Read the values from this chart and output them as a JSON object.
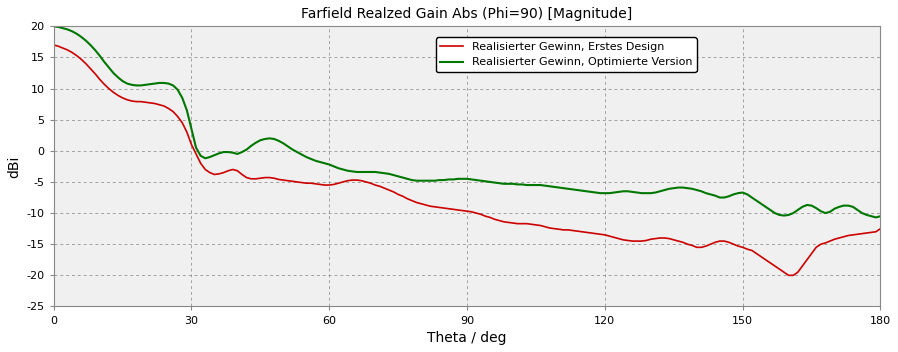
{
  "title": "Farfield Realzed Gain Abs (Phi=90) [Magnitude]",
  "xlabel": "Theta / deg",
  "ylabel": "dBi",
  "xlim": [
    0,
    180
  ],
  "ylim": [
    -25,
    20
  ],
  "xticks": [
    0,
    30,
    60,
    90,
    120,
    150,
    180
  ],
  "yticks": [
    -25,
    -20,
    -15,
    -10,
    -5,
    0,
    5,
    10,
    15,
    20
  ],
  "legend": [
    {
      "label": "Realisierter Gewinn, Erstes Design",
      "color": "#cc0000"
    },
    {
      "label": "Realisierter Gewinn, Optimierte Version",
      "color": "#007700"
    }
  ],
  "background_color": "#ffffff",
  "plot_bg_color": "#f0f0f0",
  "grid_color": "#808080",
  "red_x": [
    0,
    1,
    2,
    3,
    4,
    5,
    6,
    7,
    8,
    9,
    10,
    11,
    12,
    13,
    14,
    15,
    16,
    17,
    18,
    19,
    20,
    21,
    22,
    23,
    24,
    25,
    26,
    27,
    28,
    29,
    30,
    31,
    32,
    33,
    34,
    35,
    36,
    37,
    38,
    39,
    40,
    41,
    42,
    43,
    44,
    45,
    46,
    47,
    48,
    49,
    50,
    51,
    52,
    53,
    54,
    55,
    56,
    57,
    58,
    59,
    60,
    61,
    62,
    63,
    64,
    65,
    66,
    67,
    68,
    69,
    70,
    71,
    72,
    73,
    74,
    75,
    76,
    77,
    78,
    79,
    80,
    81,
    82,
    83,
    84,
    85,
    86,
    87,
    88,
    89,
    90,
    91,
    92,
    93,
    94,
    95,
    96,
    97,
    98,
    99,
    100,
    101,
    102,
    103,
    104,
    105,
    106,
    107,
    108,
    109,
    110,
    111,
    112,
    113,
    114,
    115,
    116,
    117,
    118,
    119,
    120,
    121,
    122,
    123,
    124,
    125,
    126,
    127,
    128,
    129,
    130,
    131,
    132,
    133,
    134,
    135,
    136,
    137,
    138,
    139,
    140,
    141,
    142,
    143,
    144,
    145,
    146,
    147,
    148,
    149,
    150,
    151,
    152,
    153,
    154,
    155,
    156,
    157,
    158,
    159,
    160,
    161,
    162,
    163,
    164,
    165,
    166,
    167,
    168,
    169,
    170,
    171,
    172,
    173,
    174,
    175,
    176,
    177,
    178,
    179,
    180
  ],
  "red_y": [
    17.0,
    16.8,
    16.5,
    16.2,
    15.8,
    15.3,
    14.7,
    14.0,
    13.2,
    12.4,
    11.5,
    10.7,
    10.0,
    9.4,
    8.9,
    8.5,
    8.2,
    8.0,
    7.9,
    7.9,
    7.8,
    7.7,
    7.6,
    7.4,
    7.2,
    6.8,
    6.3,
    5.5,
    4.5,
    3.0,
    1.0,
    -0.5,
    -2.0,
    -3.0,
    -3.5,
    -3.8,
    -3.7,
    -3.5,
    -3.2,
    -3.0,
    -3.2,
    -3.8,
    -4.3,
    -4.5,
    -4.5,
    -4.4,
    -4.3,
    -4.3,
    -4.4,
    -4.6,
    -4.7,
    -4.8,
    -4.9,
    -5.0,
    -5.1,
    -5.2,
    -5.2,
    -5.3,
    -5.4,
    -5.5,
    -5.5,
    -5.4,
    -5.2,
    -5.0,
    -4.8,
    -4.7,
    -4.7,
    -4.8,
    -5.0,
    -5.2,
    -5.5,
    -5.7,
    -6.0,
    -6.3,
    -6.6,
    -7.0,
    -7.3,
    -7.7,
    -8.0,
    -8.3,
    -8.5,
    -8.7,
    -8.9,
    -9.0,
    -9.1,
    -9.2,
    -9.3,
    -9.4,
    -9.5,
    -9.6,
    -9.7,
    -9.8,
    -10.0,
    -10.2,
    -10.5,
    -10.7,
    -11.0,
    -11.2,
    -11.4,
    -11.5,
    -11.6,
    -11.7,
    -11.7,
    -11.7,
    -11.8,
    -11.9,
    -12.0,
    -12.2,
    -12.4,
    -12.5,
    -12.6,
    -12.7,
    -12.7,
    -12.8,
    -12.9,
    -13.0,
    -13.1,
    -13.2,
    -13.3,
    -13.4,
    -13.5,
    -13.7,
    -13.9,
    -14.1,
    -14.3,
    -14.4,
    -14.5,
    -14.5,
    -14.5,
    -14.4,
    -14.2,
    -14.1,
    -14.0,
    -14.0,
    -14.1,
    -14.3,
    -14.5,
    -14.7,
    -15.0,
    -15.2,
    -15.5,
    -15.5,
    -15.3,
    -15.0,
    -14.7,
    -14.5,
    -14.5,
    -14.7,
    -15.0,
    -15.3,
    -15.5,
    -15.8,
    -16.0,
    -16.5,
    -17.0,
    -17.5,
    -18.0,
    -18.5,
    -19.0,
    -19.5,
    -20.0,
    -20.0,
    -19.5,
    -18.5,
    -17.5,
    -16.5,
    -15.5,
    -15.0,
    -14.8,
    -14.5,
    -14.2,
    -14.0,
    -13.8,
    -13.6,
    -13.5,
    -13.4,
    -13.3,
    -13.2,
    -13.1,
    -13.0,
    -12.5
  ],
  "green_x": [
    0,
    1,
    2,
    3,
    4,
    5,
    6,
    7,
    8,
    9,
    10,
    11,
    12,
    13,
    14,
    15,
    16,
    17,
    18,
    19,
    20,
    21,
    22,
    23,
    24,
    25,
    26,
    27,
    28,
    29,
    30,
    31,
    32,
    33,
    34,
    35,
    36,
    37,
    38,
    39,
    40,
    41,
    42,
    43,
    44,
    45,
    46,
    47,
    48,
    49,
    50,
    51,
    52,
    53,
    54,
    55,
    56,
    57,
    58,
    59,
    60,
    61,
    62,
    63,
    64,
    65,
    66,
    67,
    68,
    69,
    70,
    71,
    72,
    73,
    74,
    75,
    76,
    77,
    78,
    79,
    80,
    81,
    82,
    83,
    84,
    85,
    86,
    87,
    88,
    89,
    90,
    91,
    92,
    93,
    94,
    95,
    96,
    97,
    98,
    99,
    100,
    101,
    102,
    103,
    104,
    105,
    106,
    107,
    108,
    109,
    110,
    111,
    112,
    113,
    114,
    115,
    116,
    117,
    118,
    119,
    120,
    121,
    122,
    123,
    124,
    125,
    126,
    127,
    128,
    129,
    130,
    131,
    132,
    133,
    134,
    135,
    136,
    137,
    138,
    139,
    140,
    141,
    142,
    143,
    144,
    145,
    146,
    147,
    148,
    149,
    150,
    151,
    152,
    153,
    154,
    155,
    156,
    157,
    158,
    159,
    160,
    161,
    162,
    163,
    164,
    165,
    166,
    167,
    168,
    169,
    170,
    171,
    172,
    173,
    174,
    175,
    176,
    177,
    178,
    179,
    180
  ],
  "green_y": [
    20.0,
    19.9,
    19.7,
    19.5,
    19.2,
    18.8,
    18.3,
    17.7,
    17.0,
    16.2,
    15.3,
    14.3,
    13.4,
    12.5,
    11.8,
    11.2,
    10.8,
    10.6,
    10.5,
    10.5,
    10.6,
    10.7,
    10.8,
    10.9,
    10.9,
    10.8,
    10.5,
    9.8,
    8.5,
    6.5,
    3.5,
    0.5,
    -0.8,
    -1.2,
    -1.0,
    -0.7,
    -0.4,
    -0.2,
    -0.2,
    -0.3,
    -0.5,
    -0.2,
    0.2,
    0.8,
    1.3,
    1.7,
    1.9,
    2.0,
    1.9,
    1.6,
    1.2,
    0.7,
    0.2,
    -0.2,
    -0.6,
    -1.0,
    -1.3,
    -1.6,
    -1.8,
    -2.0,
    -2.2,
    -2.5,
    -2.8,
    -3.0,
    -3.2,
    -3.3,
    -3.4,
    -3.4,
    -3.4,
    -3.4,
    -3.4,
    -3.5,
    -3.6,
    -3.7,
    -3.9,
    -4.1,
    -4.3,
    -4.5,
    -4.7,
    -4.8,
    -4.8,
    -4.8,
    -4.8,
    -4.8,
    -4.7,
    -4.7,
    -4.6,
    -4.6,
    -4.5,
    -4.5,
    -4.5,
    -4.6,
    -4.7,
    -4.8,
    -4.9,
    -5.0,
    -5.1,
    -5.2,
    -5.3,
    -5.3,
    -5.3,
    -5.4,
    -5.4,
    -5.5,
    -5.5,
    -5.5,
    -5.5,
    -5.6,
    -5.7,
    -5.8,
    -5.9,
    -6.0,
    -6.1,
    -6.2,
    -6.3,
    -6.4,
    -6.5,
    -6.6,
    -6.7,
    -6.8,
    -6.8,
    -6.8,
    -6.7,
    -6.6,
    -6.5,
    -6.5,
    -6.6,
    -6.7,
    -6.8,
    -6.8,
    -6.8,
    -6.7,
    -6.5,
    -6.3,
    -6.1,
    -6.0,
    -5.9,
    -5.9,
    -6.0,
    -6.1,
    -6.3,
    -6.5,
    -6.8,
    -7.0,
    -7.2,
    -7.5,
    -7.5,
    -7.3,
    -7.0,
    -6.8,
    -6.7,
    -7.0,
    -7.5,
    -8.0,
    -8.5,
    -9.0,
    -9.5,
    -10.0,
    -10.3,
    -10.4,
    -10.3,
    -10.0,
    -9.5,
    -9.0,
    -8.7,
    -8.8,
    -9.2,
    -9.7,
    -10.0,
    -9.8,
    -9.3,
    -9.0,
    -8.8,
    -8.8,
    -9.0,
    -9.5,
    -10.0,
    -10.3,
    -10.5,
    -10.7,
    -10.5
  ]
}
